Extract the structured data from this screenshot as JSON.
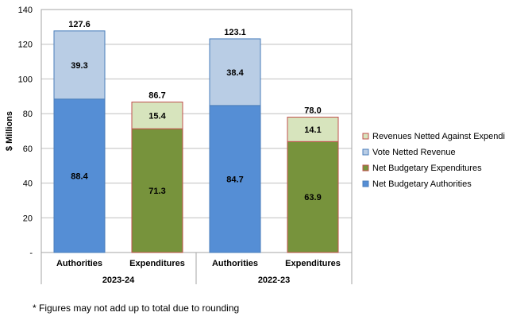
{
  "chart_data": {
    "type": "bar",
    "stacked": true,
    "ylabel": "$ Millions",
    "ylim": [
      0,
      140
    ],
    "y_ticks": [
      {
        "value": 0,
        "label": "-"
      },
      {
        "value": 20,
        "label": "20"
      },
      {
        "value": 40,
        "label": "40"
      },
      {
        "value": 60,
        "label": "60"
      },
      {
        "value": 80,
        "label": "80"
      },
      {
        "value": 100,
        "label": "100"
      },
      {
        "value": 120,
        "label": "120"
      },
      {
        "value": 140,
        "label": "140"
      }
    ],
    "grid": true,
    "legend_position": "right",
    "groups": [
      {
        "label": "2023-24",
        "categories": [
          "Authorities",
          "Expenditures"
        ]
      },
      {
        "label": "2022-23",
        "categories": [
          "Authorities",
          "Expenditures"
        ]
      }
    ],
    "series": [
      {
        "name": "Net Budgetary Authorities",
        "color": "#558ED5",
        "border": "#4A7EBB",
        "values": [
          88.4,
          null,
          84.7,
          null
        ],
        "labels": [
          "88.4",
          null,
          "84.7",
          null
        ]
      },
      {
        "name": "Net Budgetary Expenditures",
        "color": "#77933C",
        "border": "#C0504D",
        "values": [
          null,
          71.3,
          null,
          63.9
        ],
        "labels": [
          null,
          "71.3",
          null,
          "63.9"
        ]
      },
      {
        "name": "Vote Netted Revenue",
        "color": "#B9CDE5",
        "border": "#4A7EBB",
        "values": [
          39.3,
          null,
          38.4,
          null
        ],
        "labels": [
          "39.3",
          null,
          "38.4",
          null
        ]
      },
      {
        "name": "Revenues Netted Against Expenditures",
        "color": "#D7E4BD",
        "border": "#C0504D",
        "values": [
          null,
          15.4,
          null,
          14.1
        ],
        "labels": [
          null,
          "15.4",
          null,
          "14.1"
        ]
      }
    ],
    "legend_order": [
      "Revenues Netted Against Expenditures",
      "Vote Netted Revenue",
      "Net Budgetary Expenditures",
      "Net Budgetary Authorities"
    ],
    "totals": [
      "127.6",
      "86.7",
      "123.1",
      "78.0"
    ]
  },
  "footnote": "* Figures may not add up to total due to rounding"
}
